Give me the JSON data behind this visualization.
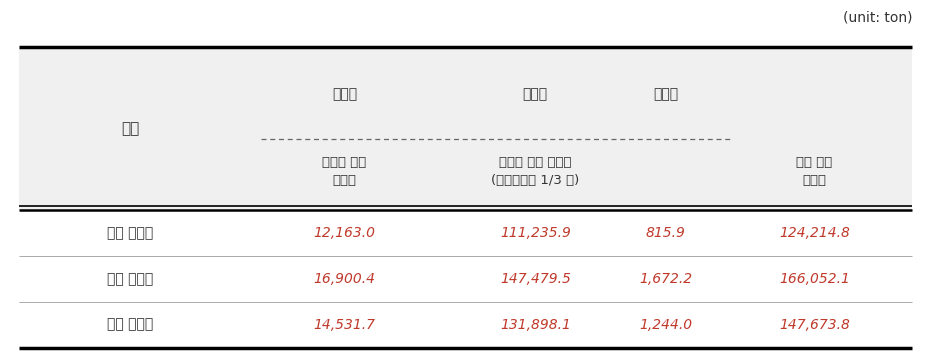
{
  "unit_label": "(unit: ton)",
  "header_bg_color": "#f0f0f0",
  "body_bg_color": "#ffffff",
  "text_color_header": "#333333",
  "text_color_data": "#c0392b",
  "text_color_label": "#333333",
  "col_header_row2_label": "구분",
  "col_header_top": [
    "사륜차",
    "사륜차",
    "이륜차"
  ],
  "col_header_sub": [
    "폐차로 인한\n발생량",
    "배터리 교체 발생량\n(등록차량의 1/3 대)",
    "연간 국내\n발생량"
  ],
  "row_labels": [
    "최소 발생량",
    "최대 발생량",
    "평균 발생량"
  ],
  "data": [
    [
      "12,163.0",
      "111,235.9",
      "815.9",
      "124,214.8"
    ],
    [
      "16,900.4",
      "147,479.5",
      "1,672.2",
      "166,052.1"
    ],
    [
      "14,531.7",
      "131,898.1",
      "1,244.0",
      "147,673.8"
    ]
  ],
  "fig_width": 9.31,
  "fig_height": 3.62,
  "dpi": 100
}
